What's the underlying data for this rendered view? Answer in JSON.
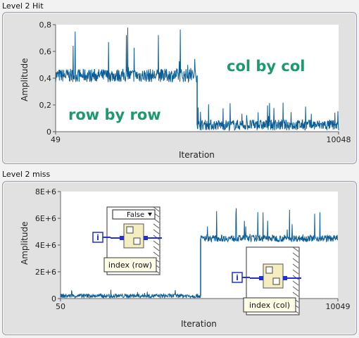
{
  "colors": {
    "signal": "#0a5d96",
    "annotation": "#1c9a6c",
    "labview_wire": "#1f2fd4",
    "node_fill": "#f3edbf"
  },
  "chart_data": [
    {
      "type": "line",
      "panel_label": "Level 2 Hit",
      "ylabel": "Amplitude",
      "xlabel": "Iteration",
      "xlim": [
        49,
        10048
      ],
      "ylim": [
        0,
        0.8
      ],
      "ytick_labels": [
        "0",
        "0,2",
        "0,4",
        "0,6",
        "0,8"
      ],
      "xtick_labels": [
        "49",
        "10048"
      ],
      "annotations": [
        "col by col",
        "row by row"
      ],
      "segments": [
        {
          "x_start": 49,
          "x_end": 5050,
          "baseline": 0.42,
          "noise": 0.05,
          "spikes_max": 0.78
        },
        {
          "x_start": 5050,
          "x_end": 10048,
          "baseline": 0.05,
          "noise": 0.04,
          "spikes_max": 0.22
        }
      ]
    },
    {
      "type": "line",
      "panel_label": "Level 2 miss",
      "ylabel": "Amplitude",
      "xlabel": "Iteration",
      "xlim": [
        50,
        10049
      ],
      "ylim": [
        0,
        8000000
      ],
      "ytick_labels": [
        "0",
        "2E+6",
        "4E+6",
        "6E+6",
        "8E+6"
      ],
      "xtick_labels": [
        "50",
        "10049"
      ],
      "segments": [
        {
          "x_start": 50,
          "x_end": 5100,
          "baseline": 200000,
          "noise": 150000,
          "spikes_max": 700000
        },
        {
          "x_start": 5100,
          "x_end": 10049,
          "baseline": 4500000,
          "noise": 250000,
          "spikes_max": 6800000
        }
      ],
      "inset_nodes": [
        {
          "case_label": "False",
          "constant": "i",
          "caption": "index (row)"
        },
        {
          "constant": "i",
          "caption": "index (col)"
        }
      ]
    }
  ]
}
